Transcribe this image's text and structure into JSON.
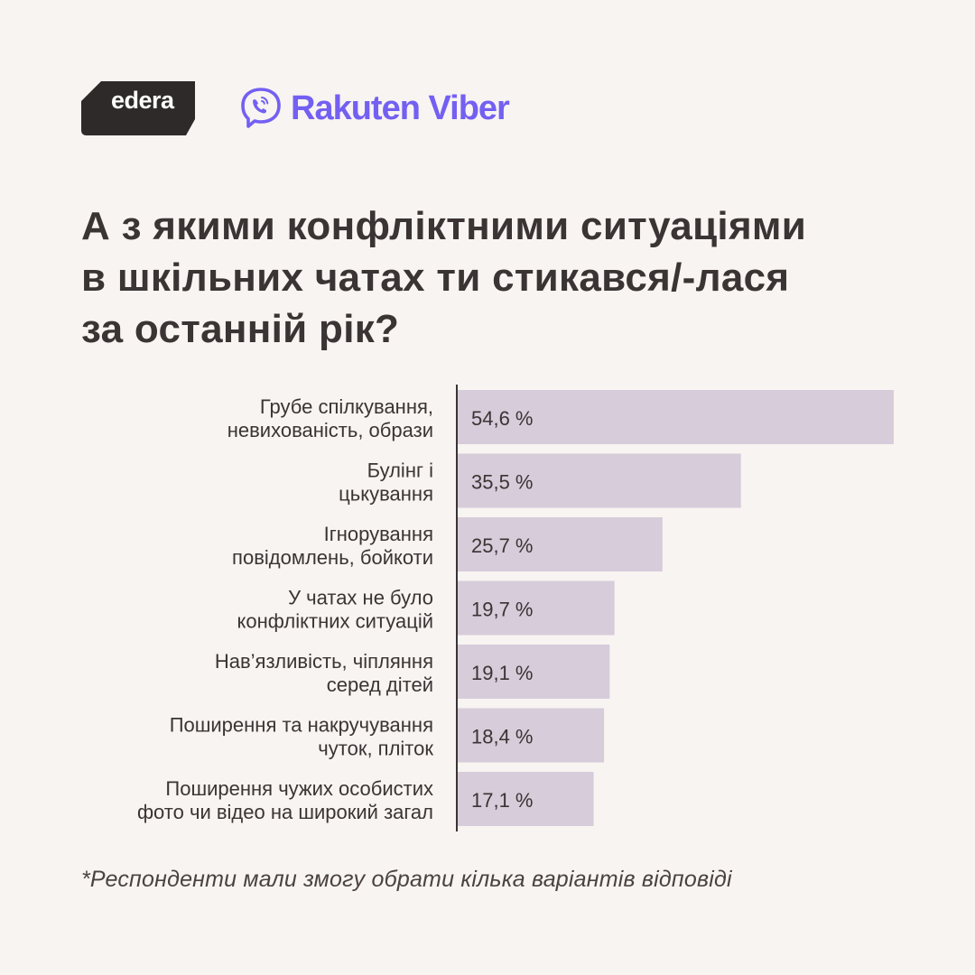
{
  "brand": {
    "edera": "edera",
    "viber": "Rakuten Viber",
    "viber_color": "#7360f2"
  },
  "title_lines": [
    "А з якими конфліктними ситуаціями",
    "в шкільних чатах ти стикався/-лася",
    "за останній рік?"
  ],
  "chart_data": {
    "type": "bar",
    "orientation": "horizontal",
    "categories": [
      [
        "Грубе спілкування,",
        "невихованість, образи"
      ],
      [
        "Булінг і",
        "цькування"
      ],
      [
        "Ігнорування",
        "повідомлень, бойкоти"
      ],
      [
        "У чатах не було",
        "конфліктних ситуацій"
      ],
      [
        "Нав’язливість, чіпляння",
        "серед дітей"
      ],
      [
        "Поширення та накручування",
        "чуток, пліток"
      ],
      [
        "Поширення чужих особистих",
        "фото чи відео на широкий загал"
      ]
    ],
    "values": [
      54.6,
      35.5,
      25.7,
      19.7,
      19.1,
      18.4,
      17.1
    ],
    "value_labels": [
      "54,6 %",
      "35,5 %",
      "25,7 %",
      "19,7 %",
      "19,1 %",
      "18,4 %",
      "17,1 %"
    ],
    "xlim": [
      0,
      54.6
    ],
    "bar_color": "#d6ccda",
    "axis_color": "#3a3434"
  },
  "footnote": "*Респонденти мали змогу обрати кілька варіантів відповіді"
}
